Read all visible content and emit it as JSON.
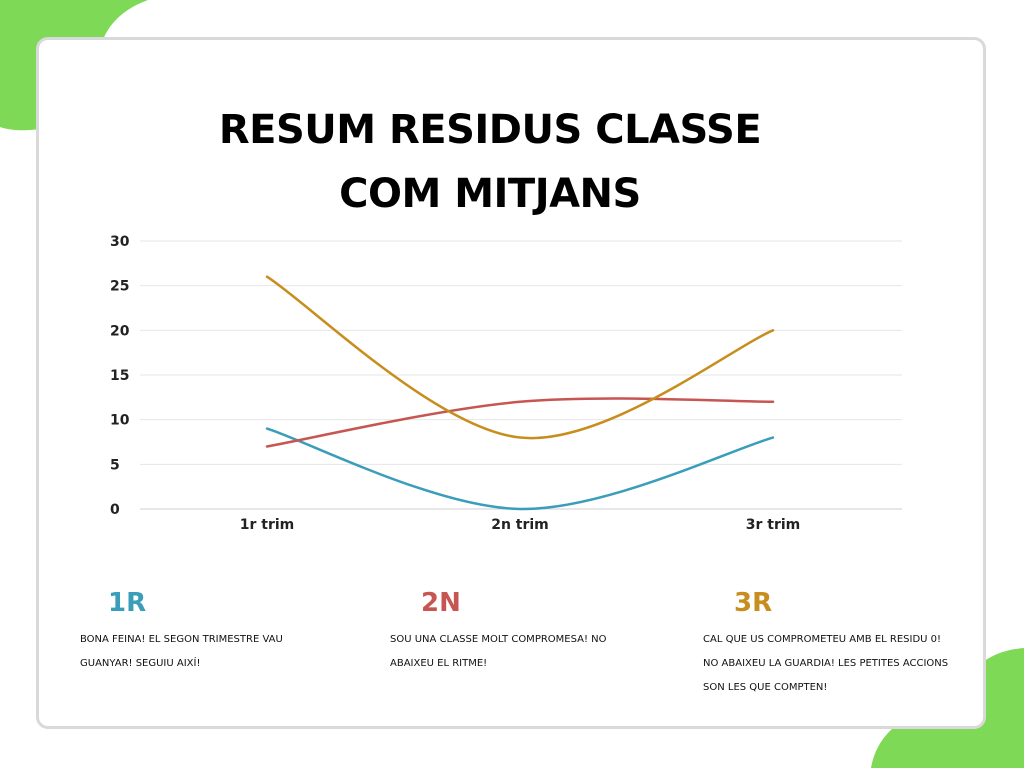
{
  "title_line1": "RESUM RESIDUS CLASSE",
  "title_line2": "COM MITJANS",
  "colors": {
    "blob": "#7ed957",
    "series_1r": "#3a9dba",
    "series_2n": "#c75551",
    "series_3r": "#c78e1e",
    "grid": "#e6e6e6",
    "axis_text": "#222222"
  },
  "chart_data": {
    "type": "line",
    "title": "RESUM RESIDUS CLASSE COM MITJANS",
    "categories": [
      "1r trim",
      "2n trim",
      "3r trim"
    ],
    "yticks": [
      0,
      5,
      10,
      15,
      20,
      25,
      30
    ],
    "ylim": [
      0,
      30
    ],
    "grid": true,
    "legend": "none",
    "series": [
      {
        "values": [
          9,
          0,
          8
        ],
        "color": "#3a9dba"
      },
      {
        "values": [
          7,
          12,
          12
        ],
        "color": "#c75551"
      },
      {
        "values": [
          26,
          8,
          20
        ],
        "color": "#c78e1e"
      }
    ]
  },
  "notes": [
    {
      "head": "1R",
      "text": "BONA FEINA! EL SEGON TRIMESTRE VAU GUANYAR! SEGUIU AIXÍ!",
      "color": "#3a9dba"
    },
    {
      "head": "2N",
      "text": "SOU UNA CLASSE MOLT COMPROMESA! NO ABAIXEU EL RITME!",
      "color": "#c75551"
    },
    {
      "head": "3R",
      "text": "CAL QUE US COMPROMETEU AMB EL RESIDU 0! NO ABAIXEU LA GUARDIA! LES PETITES ACCIONS SON LES QUE COMPTEN!",
      "color": "#c78e1e"
    }
  ]
}
